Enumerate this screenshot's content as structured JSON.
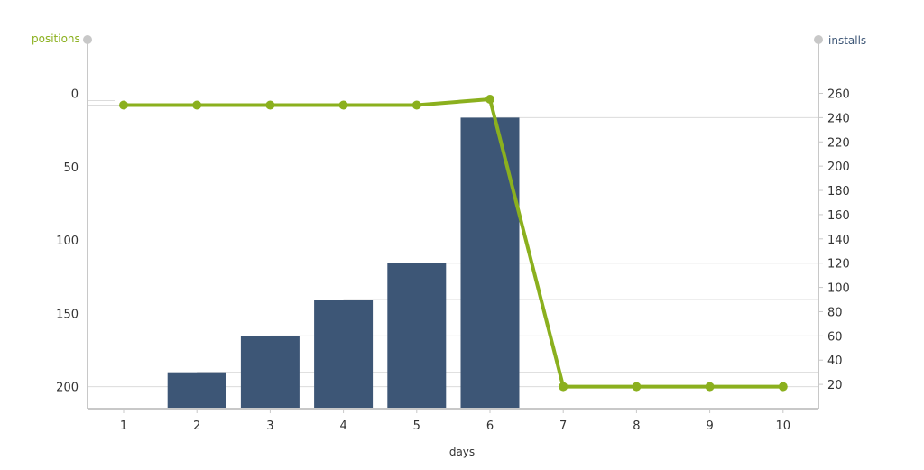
{
  "colors": {
    "bar": "#3d5676",
    "line": "#8bb01e",
    "axis": "#c8c8c8",
    "grid": "#dcdcdc",
    "left_title": "#8bb01e",
    "right_title": "#3d5676"
  },
  "chart_data": {
    "type": "bar",
    "title": "",
    "xlabel": "days",
    "categories": [
      "1",
      "2",
      "3",
      "4",
      "5",
      "6",
      "7",
      "8",
      "9",
      "10"
    ],
    "y_left": {
      "label": "positions",
      "inverted": true,
      "range": [
        0,
        215
      ],
      "ticks": [
        "0",
        "50",
        "100",
        "150",
        "200"
      ]
    },
    "y_right": {
      "label": "installs",
      "range": [
        0,
        260
      ],
      "ticks": [
        "20",
        "40",
        "60",
        "80",
        "100",
        "120",
        "140",
        "160",
        "180",
        "200",
        "220",
        "240",
        "260"
      ]
    },
    "series": [
      {
        "type": "bar",
        "axis": "right",
        "values": [
          0,
          30,
          60,
          90,
          120,
          240,
          0,
          0,
          0,
          0
        ]
      },
      {
        "type": "line",
        "axis": "left",
        "values": [
          8,
          8,
          8,
          8,
          8,
          4,
          200,
          200,
          200,
          200
        ]
      }
    ],
    "grid": true,
    "legend": "none"
  }
}
